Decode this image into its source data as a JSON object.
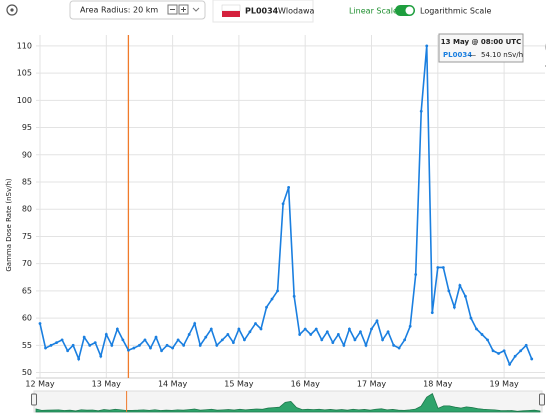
{
  "toolbar": {
    "area_radius": "Area Radius: 20 km",
    "station_code": "PL0034",
    "station_name": "Wlodawa",
    "linear_scale": "Linear Scale",
    "log_scale": "Logarithmic Scale"
  },
  "tooltip": {
    "time": "13 May @ 08:00 UTC",
    "value": "54.10 nSv/h"
  },
  "chart_data": {
    "type": "line",
    "y_label": "Gamma Dose Rate (nSv/h)",
    "categories": [
      "12 May",
      null,
      null,
      null,
      null,
      null,
      null,
      null,
      null,
      null,
      null,
      null,
      "13 May",
      null,
      null,
      null,
      null,
      null,
      null,
      null,
      null,
      null,
      null,
      null,
      "14 May",
      null,
      null,
      null,
      null,
      null,
      null,
      null,
      null,
      null,
      null,
      null,
      "15 May",
      null,
      null,
      null,
      null,
      null,
      null,
      null,
      null,
      null,
      null,
      null,
      "16 May",
      null,
      null,
      null,
      null,
      null,
      null,
      null,
      null,
      null,
      null,
      null,
      "17 May",
      null,
      null,
      null,
      null,
      null,
      null,
      null,
      null,
      null,
      null,
      null,
      "18 May",
      null,
      null,
      null,
      null,
      null,
      null,
      null,
      null,
      null,
      null,
      null,
      "19 May",
      null,
      null,
      null,
      null,
      null
    ],
    "series": [
      {
        "name": "PL0034",
        "color": "#1a7fe0",
        "values": [
          59,
          54.5,
          55,
          55.5,
          56,
          54,
          55,
          52.5,
          56.5,
          55,
          55.5,
          53,
          57,
          55,
          58,
          56,
          54.1,
          54.5,
          55,
          56,
          54.5,
          56.5,
          54,
          55,
          54.5,
          56,
          55,
          57,
          59,
          55,
          56.5,
          58,
          55,
          56,
          57,
          55.5,
          58,
          56,
          57.5,
          59,
          58,
          62,
          63.5,
          65,
          81,
          84,
          64,
          57,
          58,
          57,
          58,
          56,
          57.5,
          55.5,
          57,
          55,
          58,
          56,
          57.5,
          55,
          58,
          59.5,
          56,
          57.5,
          55,
          54.5,
          56,
          58.5,
          68,
          98,
          110,
          61,
          69.3,
          69.3,
          65,
          62,
          66,
          64,
          60,
          58,
          57,
          56,
          54,
          53.5,
          54,
          51.5,
          53,
          54,
          55,
          52.5
        ]
      }
    ],
    "ylim": [
      49,
      112
    ],
    "yticks": [
      50,
      55,
      60,
      65,
      70,
      75,
      80,
      85,
      90,
      95,
      100,
      105,
      110
    ],
    "grid": true,
    "cursor": 16
  }
}
